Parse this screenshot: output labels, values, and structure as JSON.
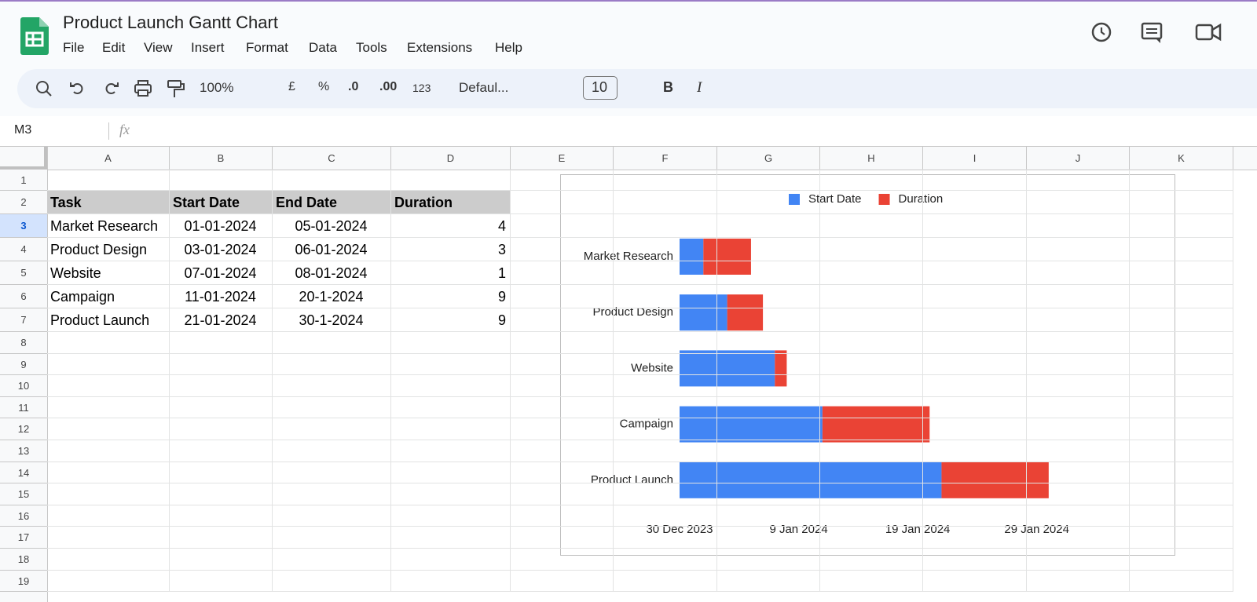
{
  "app": {
    "title": "Product Launch Gantt Chart",
    "menu": [
      "File",
      "Edit",
      "View",
      "Insert",
      "Format",
      "Data",
      "Tools",
      "Extensions",
      "Help"
    ],
    "toolbar": {
      "zoom": "100%",
      "currency": "£",
      "percent": "%",
      "decrease_decimal": ".0",
      "increase_decimal": ".00",
      "number_format": "123",
      "font": "Defaul...",
      "font_size": "10",
      "bold": "B",
      "italic": "I"
    },
    "name_box": "M3",
    "formula_label": "fx"
  },
  "sheet": {
    "columns": [
      "A",
      "B",
      "C",
      "D",
      "E",
      "F",
      "G",
      "H",
      "I",
      "J",
      "K"
    ],
    "row_numbers": [
      1,
      2,
      3,
      4,
      5,
      6,
      7,
      8,
      9,
      10,
      11,
      12,
      13,
      14,
      15,
      16,
      17,
      18,
      19
    ],
    "table": {
      "header": [
        "Task",
        "Start Date",
        "End Date",
        "Duration"
      ],
      "rows": [
        [
          "Market Research",
          "01-01-2024",
          "05-01-2024",
          "4"
        ],
        [
          "Product Design",
          "03-01-2024",
          "06-01-2024",
          "3"
        ],
        [
          "Website",
          "07-01-2024",
          "08-01-2024",
          "1"
        ],
        [
          "Campaign",
          "11-01-2024",
          "20-1-2024",
          "9"
        ],
        [
          "Product Launch",
          "21-01-2024",
          "30-1-2024",
          "9"
        ]
      ]
    }
  },
  "chart_data": {
    "type": "gantt",
    "categories": [
      "Market Research",
      "Product Design",
      "Website",
      "Campaign",
      "Product Launch"
    ],
    "series": [
      {
        "name": "Start Date",
        "color": "#4285f4",
        "values": [
          "2024-01-01",
          "2024-01-03",
          "2024-01-07",
          "2024-01-11",
          "2024-01-21"
        ]
      },
      {
        "name": "Duration",
        "color": "#ea4335",
        "values": [
          4,
          3,
          1,
          9,
          9
        ]
      }
    ],
    "xlim": [
      "2023-12-30",
      "2024-01-31"
    ],
    "xticks": [
      {
        "value": "2023-12-30",
        "label": "30 Dec 2023"
      },
      {
        "value": "2024-01-09",
        "label": "9 Jan 2024"
      },
      {
        "value": "2024-01-19",
        "label": "19 Jan 2024"
      },
      {
        "value": "2024-01-29",
        "label": "29 Jan 2024"
      }
    ],
    "legend": "top",
    "grid": false
  }
}
